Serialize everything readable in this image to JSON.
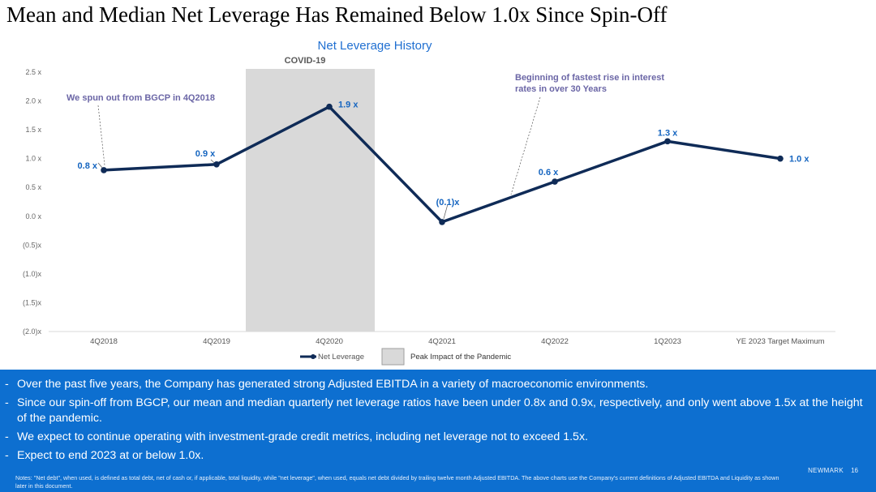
{
  "slide": {
    "title": "Mean and Median Net Leverage Has Remained Below 1.0x Since Spin-Off",
    "brand": "NEWMARK",
    "page_number": "16"
  },
  "chart_data": {
    "type": "line",
    "title": "Net Leverage History",
    "xlabel": "",
    "ylabel": "",
    "categories": [
      "4Q2018",
      "4Q2019",
      "4Q2020",
      "4Q2021",
      "4Q2022",
      "1Q2023",
      "YE 2023 Target Maximum"
    ],
    "series": [
      {
        "name": "Net Leverage",
        "values": [
          0.8,
          0.9,
          1.9,
          -0.1,
          0.6,
          1.3,
          1.0
        ],
        "labels": [
          "0.8 x",
          "0.9 x",
          "1.9 x",
          "(0.1)x",
          "0.6 x",
          "1.3 x",
          "1.0 x"
        ],
        "color": "#0f2b57"
      }
    ],
    "ylim": [
      -2.0,
      2.5
    ],
    "yticks": [
      2.5,
      2.0,
      1.5,
      1.0,
      0.5,
      0.0,
      -0.5,
      -1.0,
      -1.5,
      -2.0
    ],
    "ytick_labels": [
      "2.5 x",
      "2.0 x",
      "1.5 x",
      "1.0 x",
      "0.5 x",
      "0.0 x",
      "(0.5)x",
      "(1.0)x",
      "(1.5)x",
      "(2.0)x"
    ],
    "shaded_region": {
      "label": "COVID-19",
      "legend_label": "Peak Impact of the Pandemic",
      "color": "#d9d9d9"
    },
    "annotations": [
      {
        "text": "We spun out from BGCP in 4Q2018"
      },
      {
        "text_lines": [
          "Beginning of fastest rise in interest",
          "rates in over 30 Years"
        ]
      }
    ],
    "grid": false,
    "legend_position": "bottom",
    "title_color": "#1f6fd1",
    "label_color": "#1565c0",
    "annotation_color": "#6b66a6"
  },
  "bullets": [
    "Over the past five years, the Company has generated strong Adjusted EBITDA in a variety of macroeconomic environments.",
    "Since our spin-off from BGCP, our mean and median quarterly net leverage ratios have been under 0.8x and 0.9x, respectively, and only went above 1.5x at the height of the pandemic.",
    "We expect to continue operating with investment-grade credit metrics, including net leverage not to exceed 1.5x.",
    "Expect to end 2023 at or below 1.0x."
  ],
  "bullet_marker": "-",
  "notes": "Notes: \"Net debt\", when used, is defined as total debt, net of cash or, if applicable, total liquidity, while \"net leverage\", when used, equals net debt divided by trailing twelve month Adjusted EBITDA. The above charts use the Company's current definitions of Adjusted EBITDA and Liquidity as shown later in this document.",
  "colors": {
    "panel": "#0d6fd0",
    "panel_text": "#ffffff"
  }
}
